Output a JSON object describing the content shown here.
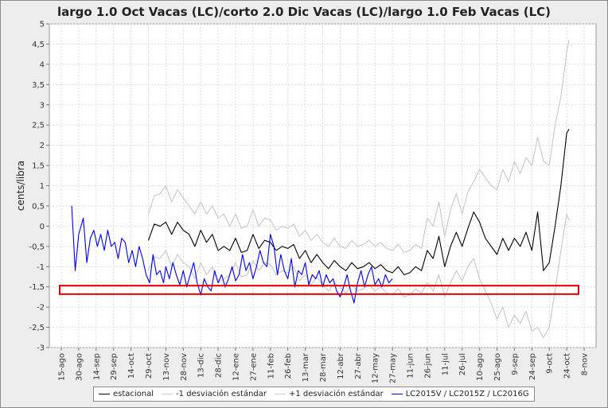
{
  "chart_data": {
    "type": "line",
    "title": "largo 1.0 Oct Vacas (LC)/corto 2.0 Dic Vacas (LC)/largo 1.0 Feb Vacas (LC)",
    "ylabel": "cents/libra",
    "xlabel": "",
    "ylim": [
      -3,
      5
    ],
    "y_ticks": [
      "-3",
      "-2,5",
      "-2",
      "-1,5",
      "-1",
      "-0,5",
      "0",
      "0,5",
      "1",
      "1,5",
      "2",
      "2,5",
      "3",
      "3,5",
      "4",
      "4,5",
      "5"
    ],
    "x_ticks": [
      "15-ago",
      "30-ago",
      "14-sep",
      "29-sep",
      "14-oct",
      "29-oct",
      "13-nov",
      "28-nov",
      "13-dic",
      "28-dic",
      "12-ene",
      "27-ene",
      "11-feb",
      "26-feb",
      "13-mar",
      "28-mar",
      "12-abr",
      "27-abr",
      "12-may",
      "27-may",
      "11-jun",
      "26-jun",
      "11-jul",
      "26-jul",
      "10-ago",
      "25-ago",
      "9-sep",
      "24-sep",
      "9-oct",
      "24-oct",
      "8-nov"
    ],
    "grid": true,
    "legend_position": "bottom",
    "highlight_band": {
      "y_from": -1.68,
      "y_to": -1.47,
      "x_from": "15-ago",
      "x_to": "8-nov",
      "color": "#e00000"
    },
    "series": [
      {
        "name": "estacional",
        "color": "#000000",
        "x": [
          "29-oct",
          "3-nov",
          "8-nov",
          "13-nov",
          "18-nov",
          "23-nov",
          "28-nov",
          "3-dic",
          "8-dic",
          "13-dic",
          "18-dic",
          "23-dic",
          "28-dic",
          "2-ene",
          "7-ene",
          "12-ene",
          "17-ene",
          "22-ene",
          "27-ene",
          "1-feb",
          "6-feb",
          "11-feb",
          "16-feb",
          "21-feb",
          "26-feb",
          "3-mar",
          "8-mar",
          "13-mar",
          "18-mar",
          "23-mar",
          "28-mar",
          "2-abr",
          "7-abr",
          "12-abr",
          "17-abr",
          "22-abr",
          "27-abr",
          "2-may",
          "7-may",
          "12-may",
          "17-may",
          "22-may",
          "27-may",
          "1-jun",
          "6-jun",
          "11-jun",
          "16-jun",
          "21-jun",
          "26-jun",
          "1-jul",
          "6-jul",
          "11-jul",
          "16-jul",
          "21-jul",
          "26-jul",
          "31-jul",
          "5-ago",
          "10-ago",
          "15-ago",
          "20-ago",
          "25-ago",
          "30-ago",
          "4-sep",
          "9-sep",
          "14-sep",
          "19-sep",
          "24-sep",
          "29-sep",
          "4-oct",
          "9-oct",
          "14-oct",
          "19-oct",
          "24-oct",
          "26-oct"
        ],
        "y": [
          -0.35,
          0.05,
          0.0,
          0.1,
          -0.2,
          0.1,
          -0.1,
          -0.2,
          -0.5,
          -0.1,
          -0.4,
          -0.2,
          -0.6,
          -0.5,
          -0.6,
          -0.3,
          -0.65,
          -0.6,
          -0.2,
          -0.55,
          -0.35,
          -0.4,
          -0.6,
          -0.5,
          -0.55,
          -0.45,
          -0.8,
          -0.6,
          -0.9,
          -0.7,
          -0.9,
          -1.05,
          -0.85,
          -1.0,
          -1.1,
          -0.9,
          -1.05,
          -1.0,
          -0.9,
          -1.05,
          -0.95,
          -1.1,
          -1.15,
          -1.0,
          -1.2,
          -1.15,
          -1.0,
          -1.1,
          -0.6,
          -0.8,
          -0.25,
          -1.0,
          -0.5,
          -0.15,
          -0.5,
          -0.05,
          0.35,
          0.1,
          -0.3,
          -0.5,
          -0.7,
          -0.3,
          -0.6,
          -0.3,
          -0.5,
          -0.15,
          -0.6,
          0.35,
          -1.1,
          -0.9,
          0.0,
          1.0,
          2.3,
          2.4
        ]
      },
      {
        "name": "-1 desviación estándar",
        "color": "#c8c8c8",
        "x": [
          "29-oct",
          "3-nov",
          "8-nov",
          "13-nov",
          "18-nov",
          "23-nov",
          "28-nov",
          "3-dic",
          "8-dic",
          "13-dic",
          "18-dic",
          "23-dic",
          "28-dic",
          "2-ene",
          "7-ene",
          "12-ene",
          "17-ene",
          "22-ene",
          "27-ene",
          "1-feb",
          "6-feb",
          "11-feb",
          "16-feb",
          "21-feb",
          "26-feb",
          "3-mar",
          "8-mar",
          "13-mar",
          "18-mar",
          "23-mar",
          "28-mar",
          "2-abr",
          "7-abr",
          "12-abr",
          "17-abr",
          "22-abr",
          "27-abr",
          "2-may",
          "7-may",
          "12-may",
          "17-may",
          "22-may",
          "27-may",
          "1-jun",
          "6-jun",
          "11-jun",
          "16-jun",
          "21-jun",
          "26-jun",
          "1-jul",
          "6-jul",
          "11-jul",
          "16-jul",
          "21-jul",
          "26-jul",
          "31-jul",
          "5-ago",
          "10-ago",
          "15-ago",
          "20-ago",
          "25-ago",
          "30-ago",
          "4-sep",
          "9-sep",
          "14-sep",
          "19-sep",
          "24-sep",
          "29-sep",
          "4-oct",
          "9-oct",
          "14-oct",
          "19-oct",
          "24-oct",
          "26-oct"
        ],
        "y": [
          -1.1,
          -0.75,
          -0.8,
          -0.6,
          -1.0,
          -0.7,
          -0.9,
          -1.0,
          -1.3,
          -0.9,
          -1.2,
          -1.0,
          -1.4,
          -1.3,
          -1.2,
          -0.9,
          -1.25,
          -1.2,
          -0.85,
          -1.1,
          -0.9,
          -0.95,
          -1.2,
          -1.1,
          -1.15,
          -1.0,
          -1.35,
          -1.2,
          -1.45,
          -1.25,
          -1.45,
          -1.6,
          -1.4,
          -1.5,
          -1.65,
          -1.45,
          -1.6,
          -1.55,
          -1.45,
          -1.6,
          -1.5,
          -1.65,
          -1.7,
          -1.55,
          -1.75,
          -1.7,
          -1.55,
          -1.65,
          -1.4,
          -1.6,
          -1.2,
          -1.75,
          -1.4,
          -1.1,
          -1.35,
          -1.0,
          -0.8,
          -1.3,
          -1.6,
          -1.9,
          -2.3,
          -2.0,
          -2.5,
          -2.2,
          -2.4,
          -2.1,
          -2.6,
          -2.5,
          -2.75,
          -2.5,
          -1.6,
          -0.6,
          0.3,
          0.15
        ]
      },
      {
        "name": "+1 desviación estándar",
        "color": "#c8c8c8",
        "x": [
          "29-oct",
          "3-nov",
          "8-nov",
          "13-nov",
          "18-nov",
          "23-nov",
          "28-nov",
          "3-dic",
          "8-dic",
          "13-dic",
          "18-dic",
          "23-dic",
          "28-dic",
          "2-ene",
          "7-ene",
          "12-ene",
          "17-ene",
          "22-ene",
          "27-ene",
          "1-feb",
          "6-feb",
          "11-feb",
          "16-feb",
          "21-feb",
          "26-feb",
          "3-mar",
          "8-mar",
          "13-mar",
          "18-mar",
          "23-mar",
          "28-mar",
          "2-abr",
          "7-abr",
          "12-abr",
          "17-abr",
          "22-abr",
          "27-abr",
          "2-may",
          "7-may",
          "12-may",
          "17-may",
          "22-may",
          "27-may",
          "1-jun",
          "6-jun",
          "11-jun",
          "16-jun",
          "21-jun",
          "26-jun",
          "1-jul",
          "6-jul",
          "11-jul",
          "16-jul",
          "21-jul",
          "26-jul",
          "31-jul",
          "5-ago",
          "10-ago",
          "15-ago",
          "20-ago",
          "25-ago",
          "30-ago",
          "4-sep",
          "9-sep",
          "14-sep",
          "19-sep",
          "24-sep",
          "29-sep",
          "4-oct",
          "9-oct",
          "14-oct",
          "19-oct",
          "24-oct",
          "26-oct"
        ],
        "y": [
          0.3,
          0.75,
          0.8,
          1.0,
          0.6,
          0.9,
          0.7,
          0.5,
          0.3,
          0.6,
          0.3,
          0.5,
          0.2,
          0.3,
          0.0,
          0.3,
          -0.05,
          0.0,
          0.4,
          0.0,
          0.2,
          0.15,
          -0.1,
          0.0,
          -0.05,
          0.05,
          -0.25,
          -0.1,
          -0.35,
          -0.2,
          -0.4,
          -0.5,
          -0.3,
          -0.5,
          -0.55,
          -0.35,
          -0.5,
          -0.45,
          -0.35,
          -0.5,
          -0.4,
          -0.55,
          -0.6,
          -0.45,
          -0.65,
          -0.6,
          -0.45,
          -0.55,
          0.2,
          0.0,
          0.6,
          -0.25,
          0.4,
          0.8,
          0.3,
          0.85,
          1.1,
          1.4,
          1.2,
          1.0,
          0.9,
          1.4,
          1.1,
          1.6,
          1.3,
          1.7,
          1.5,
          2.2,
          1.6,
          1.5,
          2.5,
          3.2,
          4.3,
          4.6
        ]
      },
      {
        "name": "LC2015V / LC2015Z / LC2016G",
        "color": "#0000ee",
        "x": [
          "24-ago",
          "27-ago",
          "30-ago",
          "3-sep",
          "6-sep",
          "9-sep",
          "12-sep",
          "15-sep",
          "18-sep",
          "21-sep",
          "24-sep",
          "27-sep",
          "30-sep",
          "3-oct",
          "6-oct",
          "9-oct",
          "12-oct",
          "15-oct",
          "18-oct",
          "21-oct",
          "24-oct",
          "27-oct",
          "30-oct",
          "2-nov",
          "5-nov",
          "8-nov",
          "11-nov",
          "13-nov",
          "16-nov",
          "19-nov",
          "22-nov",
          "25-nov",
          "28-nov",
          "1-dic",
          "4-dic",
          "7-dic",
          "10-dic",
          "13-dic",
          "16-dic",
          "19-dic",
          "22-dic",
          "25-dic",
          "28-dic",
          "31-dic",
          "3-ene",
          "6-ene",
          "9-ene",
          "12-ene",
          "15-ene",
          "18-ene",
          "21-ene",
          "24-ene",
          "27-ene",
          "30-ene",
          "2-feb",
          "5-feb",
          "8-feb",
          "11-feb",
          "14-feb",
          "17-feb",
          "20-feb",
          "23-feb",
          "26-feb",
          "1-mar",
          "4-mar",
          "7-mar",
          "10-mar",
          "13-mar",
          "16-mar",
          "19-mar",
          "22-mar",
          "25-mar",
          "28-mar",
          "31-mar",
          "3-abr",
          "6-abr",
          "9-abr",
          "12-abr",
          "15-abr",
          "18-abr",
          "21-abr",
          "24-abr",
          "27-abr",
          "30-abr",
          "3-may",
          "6-may",
          "9-may",
          "12-may",
          "15-may",
          "18-may",
          "21-may",
          "24-may",
          "27-may"
        ],
        "y": [
          0.5,
          -1.1,
          -0.2,
          0.2,
          -0.9,
          -0.3,
          -0.1,
          -0.5,
          -0.2,
          -0.6,
          -0.1,
          -0.5,
          -0.4,
          -0.8,
          -0.3,
          -0.4,
          -0.9,
          -0.6,
          -1.0,
          -0.5,
          -0.8,
          -1.2,
          -1.4,
          -0.7,
          -1.2,
          -1.1,
          -1.4,
          -1.0,
          -1.3,
          -0.9,
          -1.2,
          -1.45,
          -1.1,
          -1.5,
          -1.2,
          -0.9,
          -1.4,
          -1.7,
          -1.3,
          -1.5,
          -1.6,
          -1.1,
          -1.4,
          -1.2,
          -1.5,
          -1.3,
          -1.0,
          -1.35,
          -1.2,
          -0.7,
          -1.1,
          -0.9,
          -1.3,
          -1.0,
          -0.6,
          -0.9,
          -1.0,
          -0.2,
          -0.5,
          -1.2,
          -0.7,
          -1.1,
          -1.3,
          -0.8,
          -1.5,
          -1.1,
          -1.2,
          -0.9,
          -1.45,
          -1.2,
          -1.3,
          -1.1,
          -1.5,
          -1.2,
          -1.4,
          -1.3,
          -1.6,
          -1.75,
          -1.5,
          -1.2,
          -1.6,
          -1.9,
          -1.4,
          -1.1,
          -1.5,
          -1.2,
          -1.0,
          -1.45,
          -1.3,
          -1.5,
          -1.2,
          -1.4,
          -1.3
        ]
      }
    ]
  }
}
